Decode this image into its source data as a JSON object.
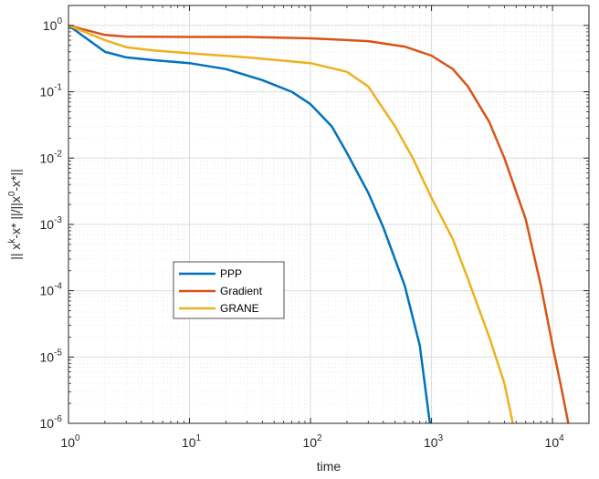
{
  "chart_data": {
    "type": "line",
    "xlabel": "time",
    "ylabel": "|| x^k-x* ||/||x^0-x*||",
    "xscale": "log",
    "yscale": "log",
    "xlim": [
      1,
      20000
    ],
    "ylim": [
      1e-06,
      2
    ],
    "grid": true,
    "minor_grid": true,
    "legend_position": "lower-left",
    "x_ticks": [
      {
        "base": "10",
        "exp": "0",
        "value": 1
      },
      {
        "base": "10",
        "exp": "1",
        "value": 10
      },
      {
        "base": "10",
        "exp": "2",
        "value": 100
      },
      {
        "base": "10",
        "exp": "3",
        "value": 1000
      },
      {
        "base": "10",
        "exp": "4",
        "value": 10000
      }
    ],
    "y_ticks": [
      {
        "base": "10",
        "exp": "0",
        "value": 1
      },
      {
        "base": "10",
        "exp": "-1",
        "value": 0.1
      },
      {
        "base": "10",
        "exp": "-2",
        "value": 0.01
      },
      {
        "base": "10",
        "exp": "-3",
        "value": 0.001
      },
      {
        "base": "10",
        "exp": "-4",
        "value": 0.0001
      },
      {
        "base": "10",
        "exp": "-5",
        "value": 1e-05
      },
      {
        "base": "10",
        "exp": "-6",
        "value": 1e-06
      }
    ],
    "series": [
      {
        "name": "PPP",
        "color": "#0072BD",
        "points": [
          [
            1,
            1.0
          ],
          [
            2,
            0.4
          ],
          [
            3,
            0.33
          ],
          [
            5,
            0.3
          ],
          [
            10,
            0.27
          ],
          [
            20,
            0.22
          ],
          [
            40,
            0.15
          ],
          [
            70,
            0.1
          ],
          [
            100,
            0.065
          ],
          [
            150,
            0.03
          ],
          [
            200,
            0.012
          ],
          [
            300,
            0.003
          ],
          [
            400,
            0.0009
          ],
          [
            600,
            0.00012
          ],
          [
            800,
            1.5e-05
          ],
          [
            970,
            1e-06
          ]
        ]
      },
      {
        "name": "Gradient",
        "color": "#D95319",
        "points": [
          [
            1,
            1.0
          ],
          [
            2,
            0.72
          ],
          [
            3,
            0.68
          ],
          [
            10,
            0.67
          ],
          [
            30,
            0.67
          ],
          [
            100,
            0.64
          ],
          [
            300,
            0.58
          ],
          [
            600,
            0.48
          ],
          [
            1000,
            0.35
          ],
          [
            1500,
            0.22
          ],
          [
            2000,
            0.12
          ],
          [
            3000,
            0.035
          ],
          [
            4000,
            0.01
          ],
          [
            6000,
            0.0012
          ],
          [
            8000,
            0.00012
          ],
          [
            10000,
            1.5e-05
          ],
          [
            12000,
            3e-06
          ],
          [
            13500,
            1e-06
          ]
        ]
      },
      {
        "name": "GRANE",
        "color": "#EDB120",
        "points": [
          [
            1,
            1.0
          ],
          [
            2,
            0.6
          ],
          [
            3,
            0.47
          ],
          [
            5,
            0.42
          ],
          [
            10,
            0.38
          ],
          [
            30,
            0.33
          ],
          [
            100,
            0.27
          ],
          [
            200,
            0.2
          ],
          [
            300,
            0.12
          ],
          [
            500,
            0.03
          ],
          [
            700,
            0.01
          ],
          [
            1000,
            0.0025
          ],
          [
            1500,
            0.0006
          ],
          [
            2000,
            0.00015
          ],
          [
            3000,
            2e-05
          ],
          [
            4000,
            4e-06
          ],
          [
            4700,
            1e-06
          ]
        ]
      }
    ]
  }
}
